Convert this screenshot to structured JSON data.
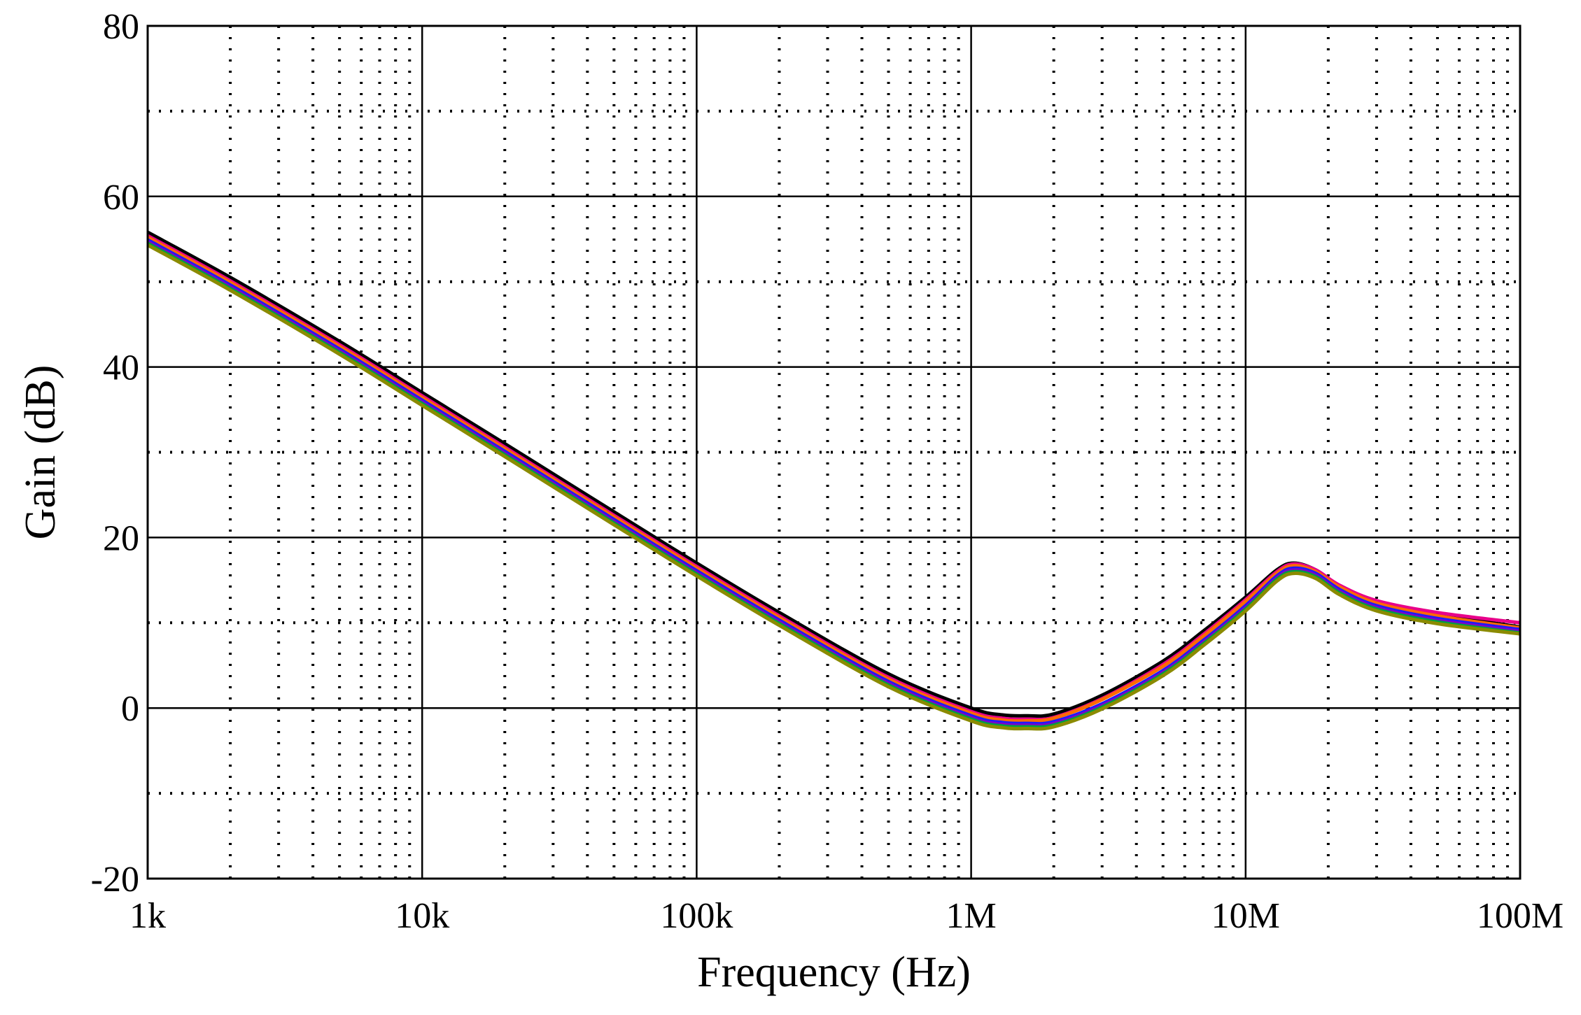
{
  "chart_data": {
    "type": "line",
    "xlabel": "Frequency (Hz)",
    "ylabel": "Gain (dB)",
    "x_scale": "log",
    "xlim": [
      1000,
      100000000
    ],
    "ylim": [
      -20,
      80
    ],
    "x_ticks": [
      {
        "value": 1000,
        "label": "1k"
      },
      {
        "value": 10000,
        "label": "10k"
      },
      {
        "value": 100000,
        "label": "100k"
      },
      {
        "value": 1000000,
        "label": "1M"
      },
      {
        "value": 10000000,
        "label": "10M"
      },
      {
        "value": 100000000,
        "label": "100M"
      }
    ],
    "y_ticks": [
      {
        "value": -20,
        "label": "-20"
      },
      {
        "value": 0,
        "label": "0"
      },
      {
        "value": 20,
        "label": "20"
      },
      {
        "value": 40,
        "label": "40"
      },
      {
        "value": 60,
        "label": "60"
      },
      {
        "value": 80,
        "label": "80"
      }
    ],
    "y_minor_ticks": [
      -10,
      10,
      30,
      50,
      70
    ],
    "grid": true,
    "legend": false,
    "x": [
      1000,
      2000,
      5000,
      10000,
      20000,
      50000,
      100000,
      200000,
      500000,
      1000000,
      1300000,
      1600000,
      2000000,
      3000000,
      5000000,
      7000000,
      10000000,
      13000000,
      15000000,
      18000000,
      22000000,
      30000000,
      50000000,
      100000000
    ],
    "series": [
      {
        "color": "#000000",
        "values": [
          55.8,
          50.5,
          43.0,
          37.0,
          31.0,
          23.0,
          17.0,
          11.2,
          4.0,
          0.0,
          -0.8,
          -0.9,
          -0.7,
          1.5,
          5.5,
          9.0,
          13.0,
          16.2,
          17.0,
          16.2,
          14.3,
          12.5,
          11.0,
          9.5
        ]
      },
      {
        "color": "#e8008a",
        "values": [
          55.4,
          50.1,
          42.6,
          36.6,
          30.6,
          22.6,
          16.6,
          10.8,
          3.6,
          -0.4,
          -1.2,
          -1.3,
          -1.1,
          1.1,
          5.1,
          8.6,
          12.7,
          16.0,
          16.9,
          16.2,
          14.4,
          12.6,
          11.2,
          10.0
        ]
      },
      {
        "color": "#ff6a00",
        "values": [
          55.2,
          49.9,
          42.4,
          36.4,
          30.4,
          22.4,
          16.4,
          10.6,
          3.4,
          -0.6,
          -1.4,
          -1.5,
          -1.2,
          1.0,
          4.9,
          8.4,
          12.5,
          15.8,
          16.7,
          16.0,
          14.2,
          12.3,
          10.8,
          9.4
        ]
      },
      {
        "color": "#1a1aff",
        "values": [
          54.9,
          49.6,
          42.1,
          36.1,
          30.1,
          22.1,
          16.1,
          10.3,
          3.1,
          -0.9,
          -1.7,
          -1.8,
          -1.6,
          0.5,
          4.4,
          7.9,
          12.0,
          15.5,
          16.4,
          15.8,
          13.9,
          12.0,
          10.5,
          9.2
        ]
      },
      {
        "color": "#7a00cc",
        "values": [
          54.7,
          49.4,
          41.9,
          35.9,
          29.9,
          21.9,
          15.9,
          10.1,
          2.9,
          -1.1,
          -1.9,
          -2.0,
          -1.8,
          0.3,
          4.2,
          7.7,
          11.8,
          15.3,
          16.2,
          15.6,
          13.7,
          11.8,
          10.3,
          9.0
        ]
      },
      {
        "color": "#00a040",
        "values": [
          54.5,
          49.2,
          41.7,
          35.7,
          29.7,
          21.7,
          15.7,
          9.9,
          2.7,
          -1.3,
          -2.1,
          -2.2,
          -2.0,
          0.1,
          4.0,
          7.5,
          11.6,
          15.1,
          16.0,
          15.4,
          13.5,
          11.6,
          10.1,
          8.8
        ]
      },
      {
        "color": "#8b8b00",
        "values": [
          54.3,
          49.0,
          41.5,
          35.5,
          29.5,
          21.5,
          15.5,
          9.7,
          2.5,
          -1.5,
          -2.3,
          -2.4,
          -2.2,
          -0.1,
          3.8,
          7.3,
          11.4,
          14.9,
          15.8,
          15.2,
          13.3,
          11.4,
          9.9,
          8.7
        ]
      }
    ]
  }
}
